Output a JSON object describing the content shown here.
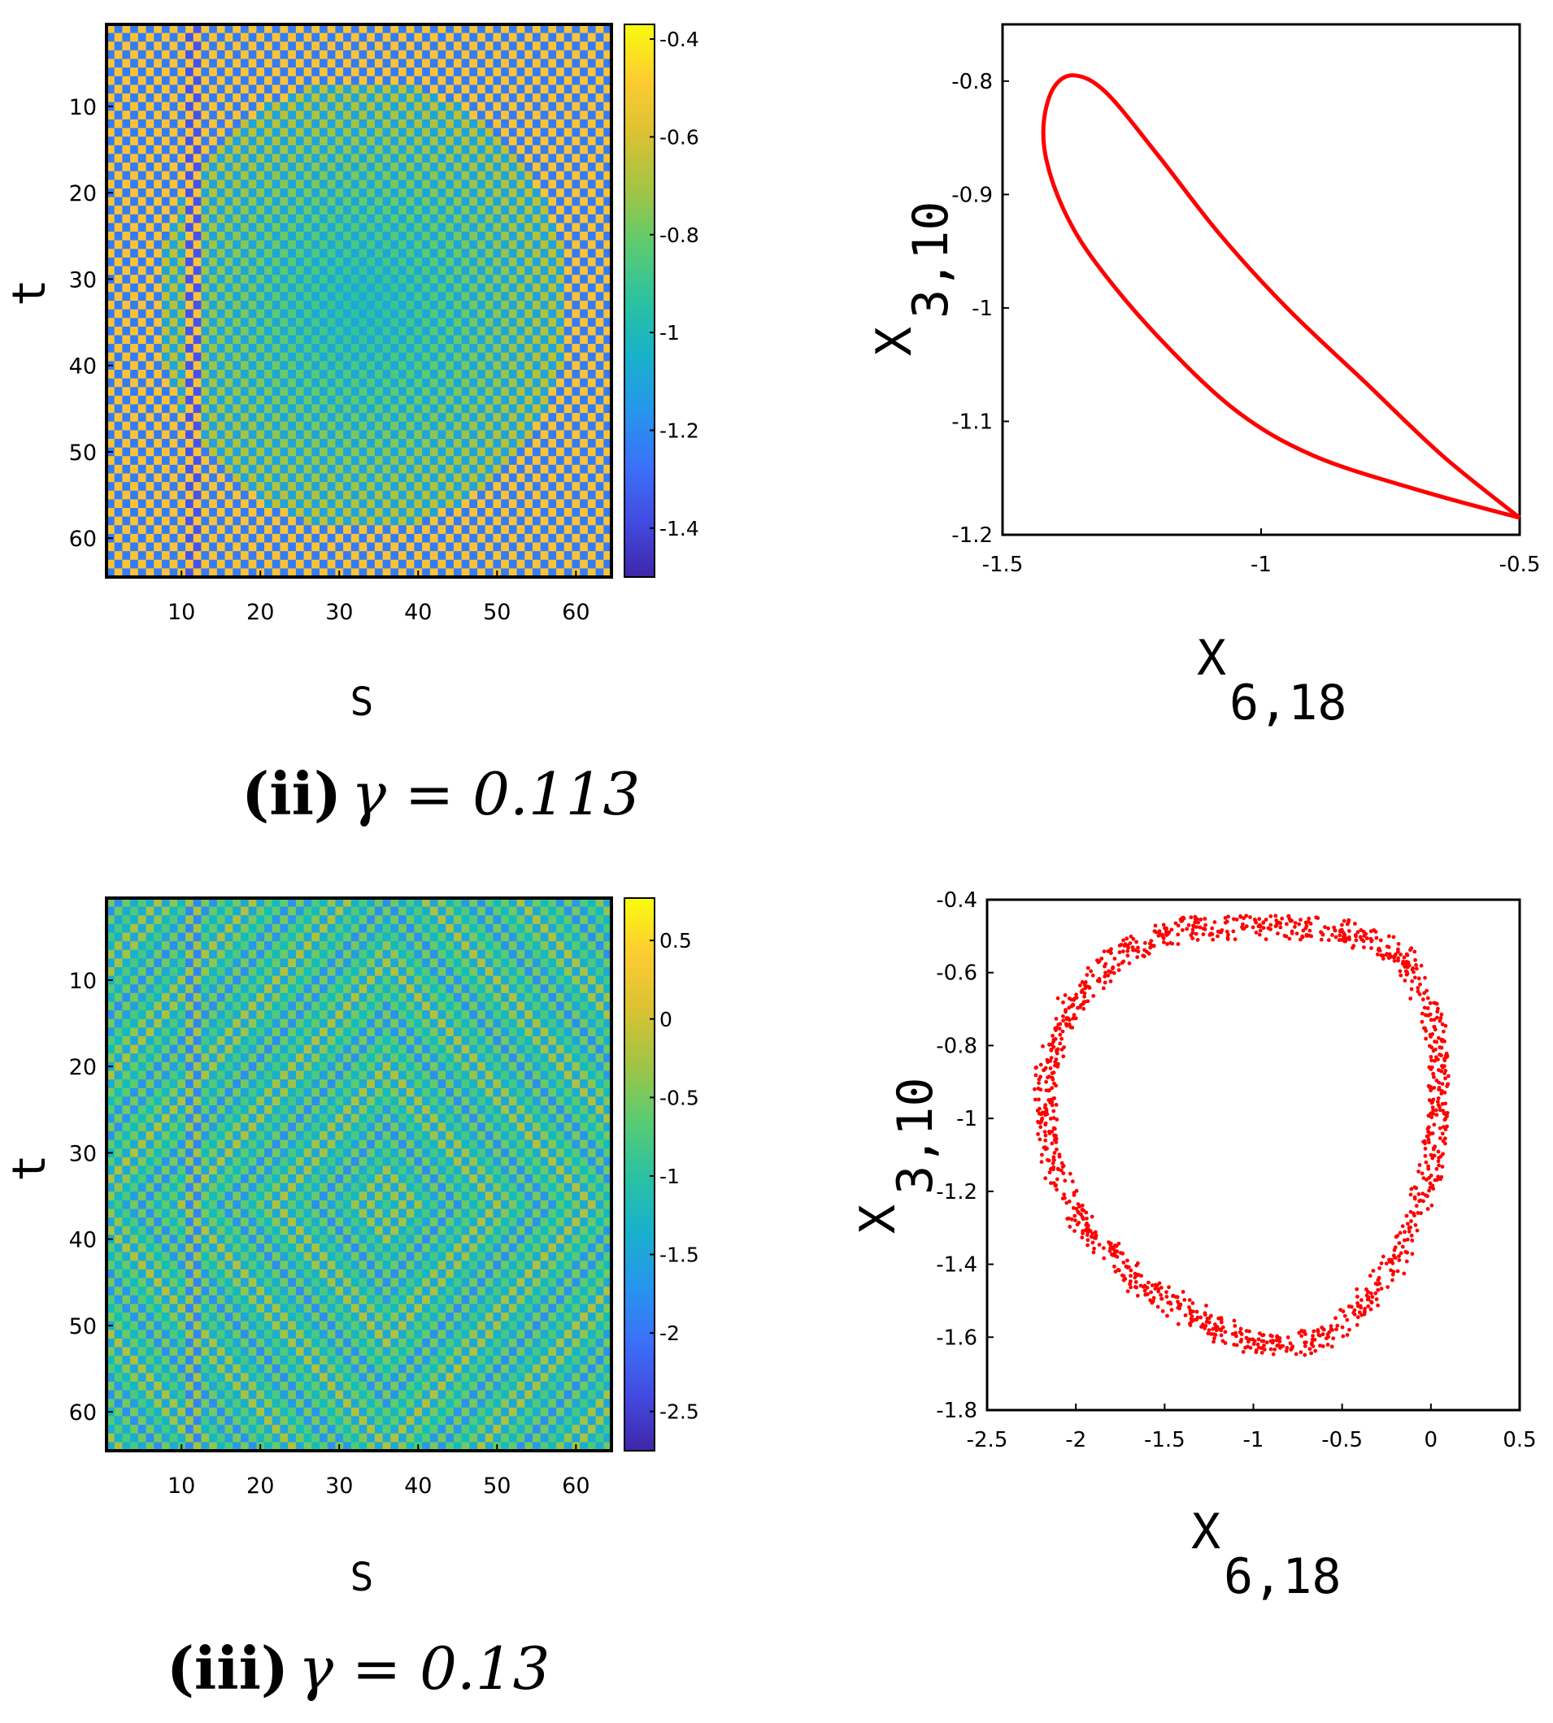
{
  "chart_data": [
    {
      "type": "heatmap",
      "panel": "heatmap-ii",
      "xlabel": "S",
      "ylabel": "t",
      "xticks": [
        "10",
        "20",
        "30",
        "40",
        "50",
        "60"
      ],
      "yticks": [
        "10",
        "20",
        "30",
        "40",
        "50",
        "60"
      ],
      "xlim": [
        1,
        64
      ],
      "ylim": [
        1,
        64
      ],
      "y_direction": "reversed",
      "grid_size": 64,
      "colorbar": {
        "ticks": [
          "-0.4",
          "-0.6",
          "-0.8",
          "-1",
          "-1.2",
          "-1.4"
        ],
        "min": -1.5,
        "max": -0.37
      },
      "colormap": "parula",
      "caption_label": "(ii)",
      "caption_value": "γ = 0.113"
    },
    {
      "type": "line",
      "panel": "orbit-ii",
      "color": "#ff0000",
      "xlabel_main": "X",
      "xlabel_sub": "6,18",
      "ylabel_main": "X",
      "ylabel_sub": "3,10",
      "xlim": [
        -1.5,
        -0.5
      ],
      "ylim": [
        -1.2,
        -0.75
      ],
      "xticks": [
        "-1.5",
        "-1",
        "-0.5"
      ],
      "yticks": [
        "-0.8",
        "-0.9",
        "-1",
        "-1.1",
        "-1.2"
      ],
      "points": [
        [
          -0.5,
          -1.185
        ],
        [
          -0.65,
          -1.13
        ],
        [
          -0.8,
          -1.065
        ],
        [
          -0.95,
          -1.0
        ],
        [
          -1.08,
          -0.935
        ],
        [
          -1.2,
          -0.865
        ],
        [
          -1.3,
          -0.81
        ],
        [
          -1.36,
          -0.795
        ],
        [
          -1.4,
          -0.805
        ],
        [
          -1.42,
          -0.835
        ],
        [
          -1.415,
          -0.87
        ],
        [
          -1.38,
          -0.915
        ],
        [
          -1.32,
          -0.96
        ],
        [
          -1.2,
          -1.025
        ],
        [
          -1.05,
          -1.09
        ],
        [
          -0.9,
          -1.13
        ],
        [
          -0.7,
          -1.16
        ],
        [
          -0.5,
          -1.185
        ]
      ]
    },
    {
      "type": "heatmap",
      "panel": "heatmap-iii",
      "xlabel": "S",
      "ylabel": "t",
      "xticks": [
        "10",
        "20",
        "30",
        "40",
        "50",
        "60"
      ],
      "yticks": [
        "10",
        "20",
        "30",
        "40",
        "50",
        "60"
      ],
      "xlim": [
        1,
        64
      ],
      "ylim": [
        1,
        64
      ],
      "y_direction": "reversed",
      "grid_size": 64,
      "colorbar": {
        "ticks": [
          "0.5",
          "0",
          "-0.5",
          "-1",
          "-1.5",
          "-2",
          "-2.5"
        ],
        "min": -2.75,
        "max": 0.77
      },
      "colormap": "parula",
      "caption_label": "(iii)",
      "caption_value": "γ = 0.13"
    },
    {
      "type": "scatter",
      "panel": "orbit-iii",
      "color": "#ff0000",
      "xlabel_main": "X",
      "xlabel_sub": "6,18",
      "ylabel_main": "X",
      "ylabel_sub": "3,10",
      "xlim": [
        -2.5,
        0.5
      ],
      "ylim": [
        -1.8,
        -0.4
      ],
      "xticks": [
        "-2.5",
        "-2",
        "-1.5",
        "-1",
        "-0.5",
        "0",
        "0.5"
      ],
      "yticks": [
        "-0.4",
        "-0.6",
        "-0.8",
        "-1",
        "-1.2",
        "-1.4",
        "-1.6",
        "-1.8"
      ],
      "loop": [
        [
          -0.95,
          -0.475
        ],
        [
          -0.5,
          -0.48
        ],
        [
          -0.15,
          -0.55
        ],
        [
          0.03,
          -0.75
        ],
        [
          0.05,
          -0.95
        ],
        [
          0.0,
          -1.15
        ],
        [
          -0.2,
          -1.4
        ],
        [
          -0.55,
          -1.6
        ],
        [
          -0.95,
          -1.63
        ],
        [
          -1.3,
          -1.55
        ],
        [
          -1.65,
          -1.45
        ],
        [
          -1.95,
          -1.3
        ],
        [
          -2.15,
          -1.1
        ],
        [
          -2.18,
          -0.9
        ],
        [
          -2.05,
          -0.7
        ],
        [
          -1.75,
          -0.55
        ],
        [
          -1.4,
          -0.48
        ],
        [
          -0.95,
          -0.475
        ]
      ],
      "band_width": 0.06
    }
  ]
}
